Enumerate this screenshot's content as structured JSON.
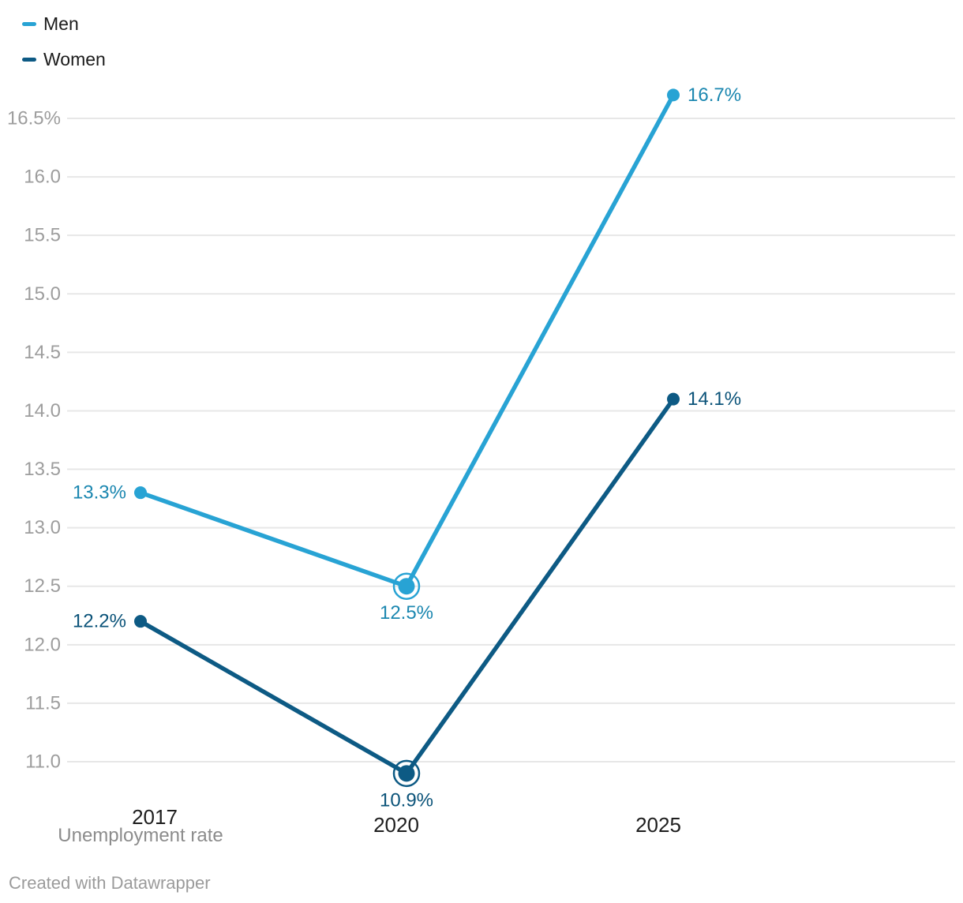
{
  "legend": {
    "items": [
      {
        "label": "Men"
      },
      {
        "label": "Women"
      }
    ]
  },
  "footer": {
    "credit": "Created with Datawrapper"
  },
  "chart_data": {
    "type": "line",
    "title": "",
    "categories": [
      "2017",
      "2020",
      "2025"
    ],
    "x_axis_note": "Unemployment rate",
    "unit": "%",
    "series": [
      {
        "name": "Men",
        "values": [
          13.3,
          12.5,
          16.7
        ],
        "point_labels": [
          "13.3%",
          "12.5%",
          "16.7%"
        ],
        "color": "#28a3d4",
        "label_color": "#1b87b0"
      },
      {
        "name": "Women",
        "values": [
          12.2,
          10.9,
          14.1
        ],
        "point_labels": [
          "12.2%",
          "10.9%",
          "14.1%"
        ],
        "color": "#0d5a84",
        "label_color": "#0b5379"
      }
    ],
    "ylim": [
      11.0,
      16.5
    ],
    "y_ticks": [
      {
        "value": 16.5,
        "label": "16.5%"
      },
      {
        "value": 16.0,
        "label": "16.0"
      },
      {
        "value": 15.5,
        "label": "15.5"
      },
      {
        "value": 15.0,
        "label": "15.0"
      },
      {
        "value": 14.5,
        "label": "14.5"
      },
      {
        "value": 14.0,
        "label": "14.0"
      },
      {
        "value": 13.5,
        "label": "13.5"
      },
      {
        "value": 13.0,
        "label": "13.0"
      },
      {
        "value": 12.5,
        "label": "12.5"
      },
      {
        "value": 12.0,
        "label": "12.0"
      },
      {
        "value": 11.5,
        "label": "11.5"
      },
      {
        "value": 11.0,
        "label": "11.0"
      }
    ],
    "grid": true,
    "legend_position": "top-left",
    "highlighted_category": "2020"
  }
}
